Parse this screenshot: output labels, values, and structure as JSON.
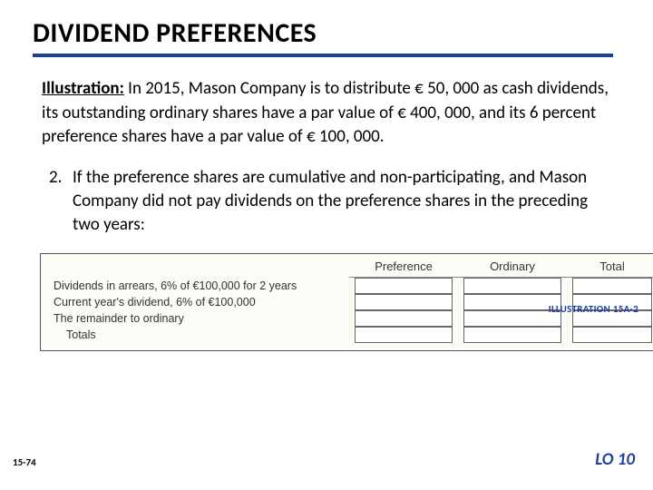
{
  "title": "DIVIDEND PREFERENCES",
  "accent_color": "#1f3f9e",
  "illustration": {
    "lead": "Illustration:",
    "body": "In 2015, Mason Company is to distribute € 50, 000 as cash dividends, its outstanding ordinary shares have a par value of € 400, 000, and its 6 percent preference shares have a par value of € 100, 000."
  },
  "numbered_item": {
    "number": "2.",
    "text": "If the preference shares are cumulative and non-participating, and Mason Company did not pay dividends on the preference shares in the preceding two years:"
  },
  "citation": "ILLUSTRATION 15A-2",
  "table": {
    "background_color": "#fcfbf5",
    "border_color": "#555555",
    "cell_border_color": "#666666",
    "columns": [
      "",
      "Preference",
      "Ordinary",
      "Total"
    ],
    "rows": [
      {
        "label": "Dividends in arrears, 6% of €100,000 for 2 years",
        "preference": "",
        "ordinary": "",
        "total": ""
      },
      {
        "label": "Current year's dividend, 6% of €100,000",
        "preference": "",
        "ordinary": "",
        "total": ""
      },
      {
        "label": "The remainder to ordinary",
        "preference": "",
        "ordinary": "",
        "total": ""
      },
      {
        "label": "Totals",
        "indent": true,
        "preference": "",
        "ordinary": "",
        "total": ""
      }
    ]
  },
  "footer": {
    "left": "15-74",
    "right": "LO 10"
  }
}
